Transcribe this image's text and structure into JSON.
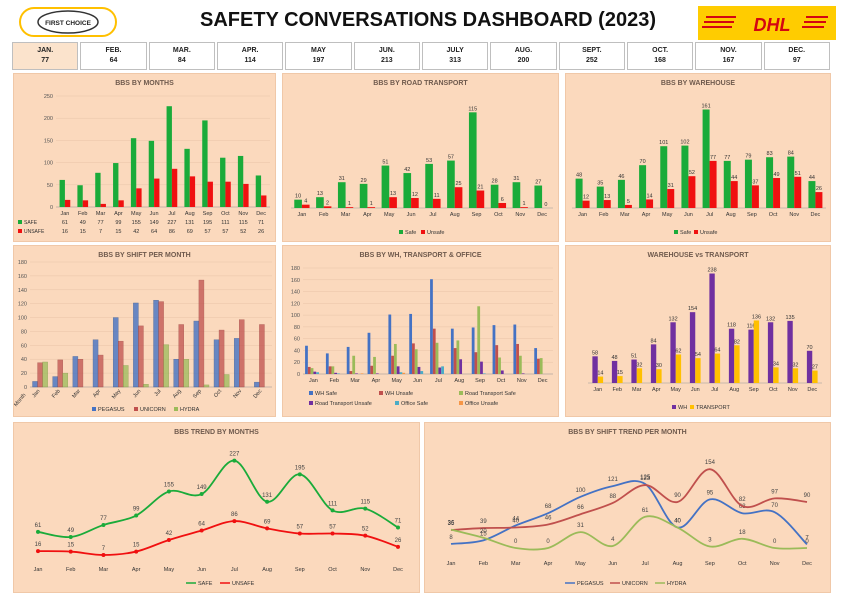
{
  "header": {
    "title": "SAFETY CONVERSATIONS DASHBOARD (2023)",
    "logo_text": "FIRST CHOICE",
    "brand": "DHL"
  },
  "colors": {
    "safe": "#1aab3a",
    "unsafe": "#f01010",
    "wh": "#7030a0",
    "transport": "#ffc000",
    "pegasus": "#4472c4",
    "unicorn": "#c0504d",
    "hydra": "#9bbb59",
    "panel": "#fbd9bd"
  },
  "month_strip": [
    {
      "label": "JAN.",
      "value": "77"
    },
    {
      "label": "FEB.",
      "value": "64"
    },
    {
      "label": "MAR.",
      "value": "84"
    },
    {
      "label": "APR.",
      "value": "114"
    },
    {
      "label": "MAY",
      "value": "197"
    },
    {
      "label": "JUN.",
      "value": "213"
    },
    {
      "label": "JULY",
      "value": "313"
    },
    {
      "label": "AUG.",
      "value": "200"
    },
    {
      "label": "SEPT.",
      "value": "252"
    },
    {
      "label": "OCT.",
      "value": "168"
    },
    {
      "label": "NOV.",
      "value": "167"
    },
    {
      "label": "DEC.",
      "value": "97"
    }
  ],
  "chart_data": [
    {
      "id": "months",
      "type": "bar",
      "title": "BBS BY MONTHS",
      "categories": [
        "Jan",
        "Feb",
        "Mar",
        "Apr",
        "May",
        "Jun",
        "Jul",
        "Aug",
        "Sep",
        "Oct",
        "Nov",
        "Dec"
      ],
      "ylim": [
        0,
        250
      ],
      "yticks": [
        0,
        50,
        100,
        150,
        200,
        250
      ],
      "series": [
        {
          "name": "SAFE",
          "values": [
            61,
            49,
            77,
            99,
            155,
            149,
            227,
            131,
            195,
            111,
            115,
            71
          ]
        },
        {
          "name": "UNSAFE",
          "values": [
            16,
            15,
            7,
            15,
            42,
            64,
            86,
            69,
            57,
            57,
            52,
            26
          ]
        }
      ],
      "legend": "bottom-table"
    },
    {
      "id": "road",
      "type": "bar",
      "title": "BBS BY ROAD TRANSPORT",
      "categories": [
        "Jan",
        "Feb",
        "Mar",
        "Apr",
        "May",
        "Jun",
        "Jul",
        "Aug",
        "Sep",
        "Oct",
        "Nov",
        "Dec"
      ],
      "ylim": [
        0,
        125
      ],
      "series": [
        {
          "name": "Safe",
          "values": [
            10,
            13,
            31,
            29,
            51,
            42,
            53,
            57,
            115,
            28,
            31,
            27
          ]
        },
        {
          "name": "Unsafe",
          "values": [
            4,
            2,
            1,
            1,
            13,
            12,
            11,
            25,
            21,
            6,
            1,
            0
          ]
        }
      ],
      "legend": "bottom"
    },
    {
      "id": "warehouse",
      "type": "bar",
      "title": "BBS BY WAREHOUSE",
      "categories": [
        "Jan",
        "Feb",
        "Mar",
        "Apr",
        "May",
        "Jun",
        "Jul",
        "Aug",
        "Sep",
        "Oct",
        "Nov",
        "Dec"
      ],
      "ylim": [
        0,
        170
      ],
      "series": [
        {
          "name": "Safe",
          "values": [
            48,
            35,
            46,
            70,
            101,
            102,
            161,
            77,
            79,
            83,
            84,
            44
          ]
        },
        {
          "name": "Unsafe",
          "values": [
            12,
            13,
            5,
            14,
            31,
            52,
            77,
            44,
            37,
            49,
            51,
            26
          ]
        }
      ],
      "legend": "bottom"
    },
    {
      "id": "shift",
      "type": "bar",
      "title": "BBS BY SHIFT PER MONTH",
      "categories": [
        "Jan",
        "Feb",
        "Mar",
        "Apr",
        "May",
        "Jun",
        "Jul",
        "Aug",
        "Sep",
        "Oct",
        "Nov",
        "Dec"
      ],
      "ylim": [
        0,
        180
      ],
      "yticks": [
        0,
        20,
        40,
        60,
        80,
        100,
        120,
        140,
        160,
        180
      ],
      "xlabel_first": "Month",
      "series": [
        {
          "name": "PEGASUS",
          "values": [
            8,
            15,
            44,
            68,
            100,
            121,
            125,
            40,
            95,
            68,
            70,
            7
          ]
        },
        {
          "name": "UNICORN",
          "values": [
            35,
            39,
            40,
            46,
            66,
            88,
            123,
            90,
            154,
            82,
            97,
            90
          ]
        },
        {
          "name": "HYDRA",
          "values": [
            36,
            20,
            0,
            0,
            31,
            4,
            61,
            40,
            3,
            18,
            0,
            0
          ]
        }
      ],
      "legend": "bottom"
    },
    {
      "id": "wh_transport_office",
      "type": "bar",
      "title": "BBS BY WH, TRANSPORT & OFFICE",
      "categories": [
        "Jan",
        "Feb",
        "Mar",
        "Apr",
        "May",
        "Jun",
        "Jul",
        "Aug",
        "Sep",
        "Oct",
        "Nov",
        "Dec"
      ],
      "ylim": [
        0,
        180
      ],
      "yticks": [
        0,
        20,
        40,
        60,
        80,
        100,
        120,
        140,
        160,
        180
      ],
      "series": [
        {
          "name": "WH Safe",
          "values": [
            48,
            35,
            46,
            70,
            101,
            102,
            161,
            77,
            79,
            83,
            84,
            44
          ]
        },
        {
          "name": "WH Unsafe",
          "values": [
            12,
            13,
            5,
            14,
            31,
            52,
            77,
            44,
            37,
            49,
            51,
            26
          ]
        },
        {
          "name": "Road Transport Safe",
          "values": [
            10,
            13,
            31,
            29,
            51,
            42,
            53,
            57,
            115,
            28,
            31,
            27
          ]
        },
        {
          "name": "Road Transport Unsafe",
          "values": [
            4,
            2,
            1,
            1,
            13,
            12,
            11,
            25,
            21,
            6,
            1,
            0
          ]
        },
        {
          "name": "Office Safe",
          "values": [
            3,
            1,
            0,
            0,
            3,
            5,
            13,
            0,
            1,
            0,
            0,
            0
          ]
        },
        {
          "name": "Office Unsafe",
          "values": [
            0,
            0,
            1,
            0,
            2,
            0,
            0,
            0,
            0,
            0,
            0,
            0
          ]
        }
      ],
      "legend": "bottom"
    },
    {
      "id": "wh_vs_transport",
      "type": "bar",
      "title": "WAREHOUSE vs TRANSPORT",
      "categories": [
        "Jan",
        "Feb",
        "Mar",
        "Apr",
        "May",
        "Jun",
        "Jul",
        "Aug",
        "Sep",
        "Oct",
        "Nov",
        "Dec"
      ],
      "ylim": [
        0,
        250
      ],
      "series": [
        {
          "name": "WH",
          "values": [
            58,
            48,
            51,
            84,
            132,
            154,
            238,
            118,
            116,
            132,
            135,
            70
          ]
        },
        {
          "name": "TRANSPORT",
          "values": [
            14,
            15,
            32,
            30,
            62,
            54,
            64,
            82,
            136,
            34,
            32,
            27
          ]
        }
      ],
      "legend": "bottom"
    },
    {
      "id": "trend_months",
      "type": "line",
      "title": "BBS TREND BY MONTHS",
      "categories": [
        "Jan",
        "Feb",
        "Mar",
        "Apr",
        "May",
        "Jun",
        "Jul",
        "Aug",
        "Sep",
        "Oct",
        "Nov",
        "Dec"
      ],
      "ylim": [
        0,
        240
      ],
      "series": [
        {
          "name": "SAFE",
          "values": [
            61,
            49,
            77,
            99,
            155,
            149,
            227,
            131,
            195,
            111,
            115,
            71
          ]
        },
        {
          "name": "UNSAFE",
          "values": [
            16,
            15,
            7,
            15,
            42,
            64,
            86,
            69,
            57,
            57,
            52,
            26
          ]
        }
      ],
      "legend": "bottom"
    },
    {
      "id": "trend_shift",
      "type": "line",
      "title": "BBS BY SHIFT TREND PER MONTH",
      "categories": [
        "Jan",
        "Feb",
        "Mar",
        "Apr",
        "May",
        "Jun",
        "Jul",
        "Aug",
        "Sep",
        "Oct",
        "Nov",
        "Dec"
      ],
      "ylim": [
        0,
        170
      ],
      "series": [
        {
          "name": "PEGASUS",
          "values": [
            8,
            15,
            44,
            68,
            100,
            121,
            125,
            40,
            95,
            68,
            70,
            7
          ]
        },
        {
          "name": "UNICORN",
          "values": [
            35,
            39,
            40,
            46,
            66,
            88,
            123,
            90,
            154,
            82,
            97,
            90
          ]
        },
        {
          "name": "HYDRA",
          "values": [
            36,
            20,
            0,
            0,
            31,
            4,
            61,
            40,
            3,
            18,
            0,
            0
          ]
        }
      ],
      "legend": "bottom"
    }
  ]
}
